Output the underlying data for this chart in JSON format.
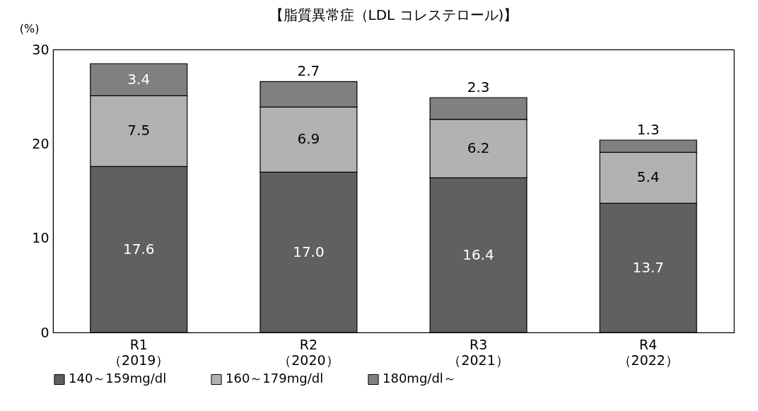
{
  "chart_data": {
    "type": "bar",
    "title": "【脂質異常症（LDL コレステロール)】",
    "ylabel": "(%)",
    "categories": [
      "R1\n（2019）",
      "R2\n（2020）",
      "R3\n（2021）",
      "R4\n（2022）"
    ],
    "stacked": true,
    "ylim": [
      0,
      30
    ],
    "yticks": [
      0,
      10,
      20,
      30
    ],
    "grid": false,
    "legend": "bottom",
    "series": [
      {
        "name": "140～159mg/dl",
        "color": "#606060",
        "values": [
          17.6,
          17.0,
          16.4,
          13.7
        ],
        "value_labels": [
          "17.6",
          "17.0",
          "16.4",
          "13.7"
        ]
      },
      {
        "name": "160～179mg/dl",
        "color": "#b2b2b2",
        "values": [
          7.5,
          6.9,
          6.2,
          5.4
        ],
        "value_labels": [
          "7.5",
          "6.9",
          "6.2",
          "5.4"
        ]
      },
      {
        "name": "180mg/dl～",
        "color": "#808080",
        "values": [
          3.4,
          2.7,
          2.3,
          1.3
        ],
        "value_labels": [
          "3.4",
          "2.7",
          "2.3",
          "1.3"
        ]
      }
    ]
  }
}
